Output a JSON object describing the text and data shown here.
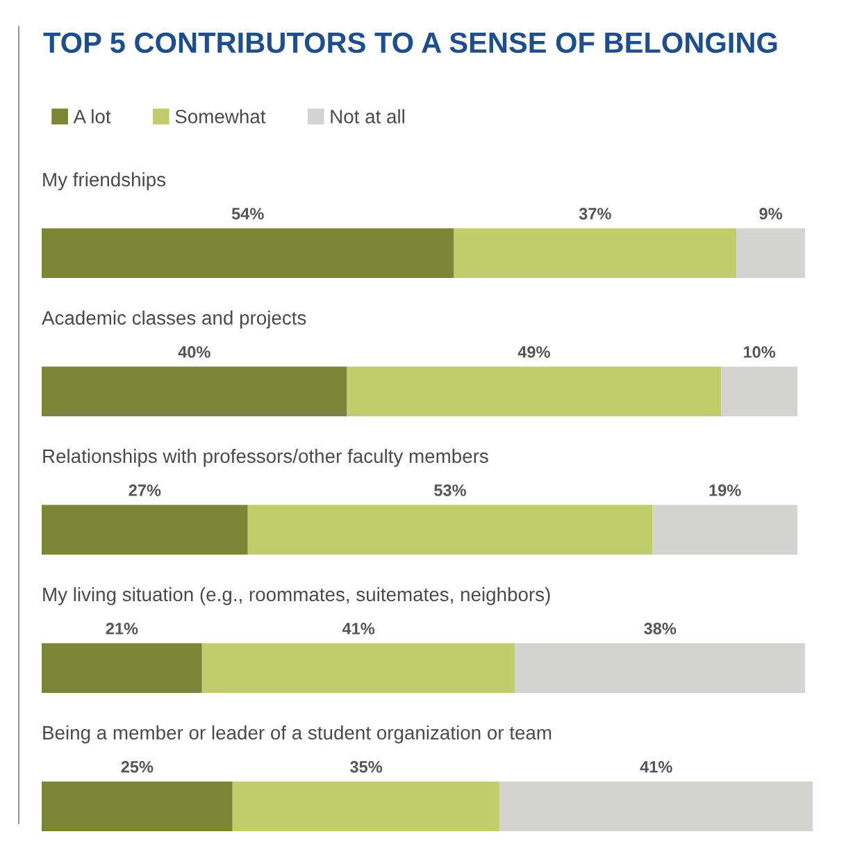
{
  "chart_data": {
    "type": "bar",
    "orientation": "horizontal",
    "stacked": true,
    "title": "TOP 5 CONTRIBUTORS TO A SENSE OF BELONGING",
    "categories": [
      "My friendships",
      "Academic classes and projects",
      "Relationships with professors/other faculty members",
      "My living situation (e.g., roommates, suitemates, neighbors)",
      "Being a member or leader of a student organization or team"
    ],
    "series": [
      {
        "name": "A lot",
        "color": "#7a8535",
        "values": [
          54,
          40,
          27,
          21,
          25
        ],
        "value_labels": [
          "54%",
          "40%",
          "27%",
          "21%",
          "25%"
        ]
      },
      {
        "name": "Somewhat",
        "color": "#c0cd6b",
        "values": [
          37,
          49,
          53,
          41,
          35
        ],
        "value_labels": [
          "37%",
          "49%",
          "53%",
          "41%",
          "35%"
        ]
      },
      {
        "name": "Not at all",
        "color": "#d3d3d1",
        "values": [
          9,
          10,
          19,
          38,
          41
        ],
        "value_labels": [
          "9%",
          "10%",
          "19%",
          "38%",
          "41%"
        ]
      }
    ],
    "legend": "top left"
  }
}
